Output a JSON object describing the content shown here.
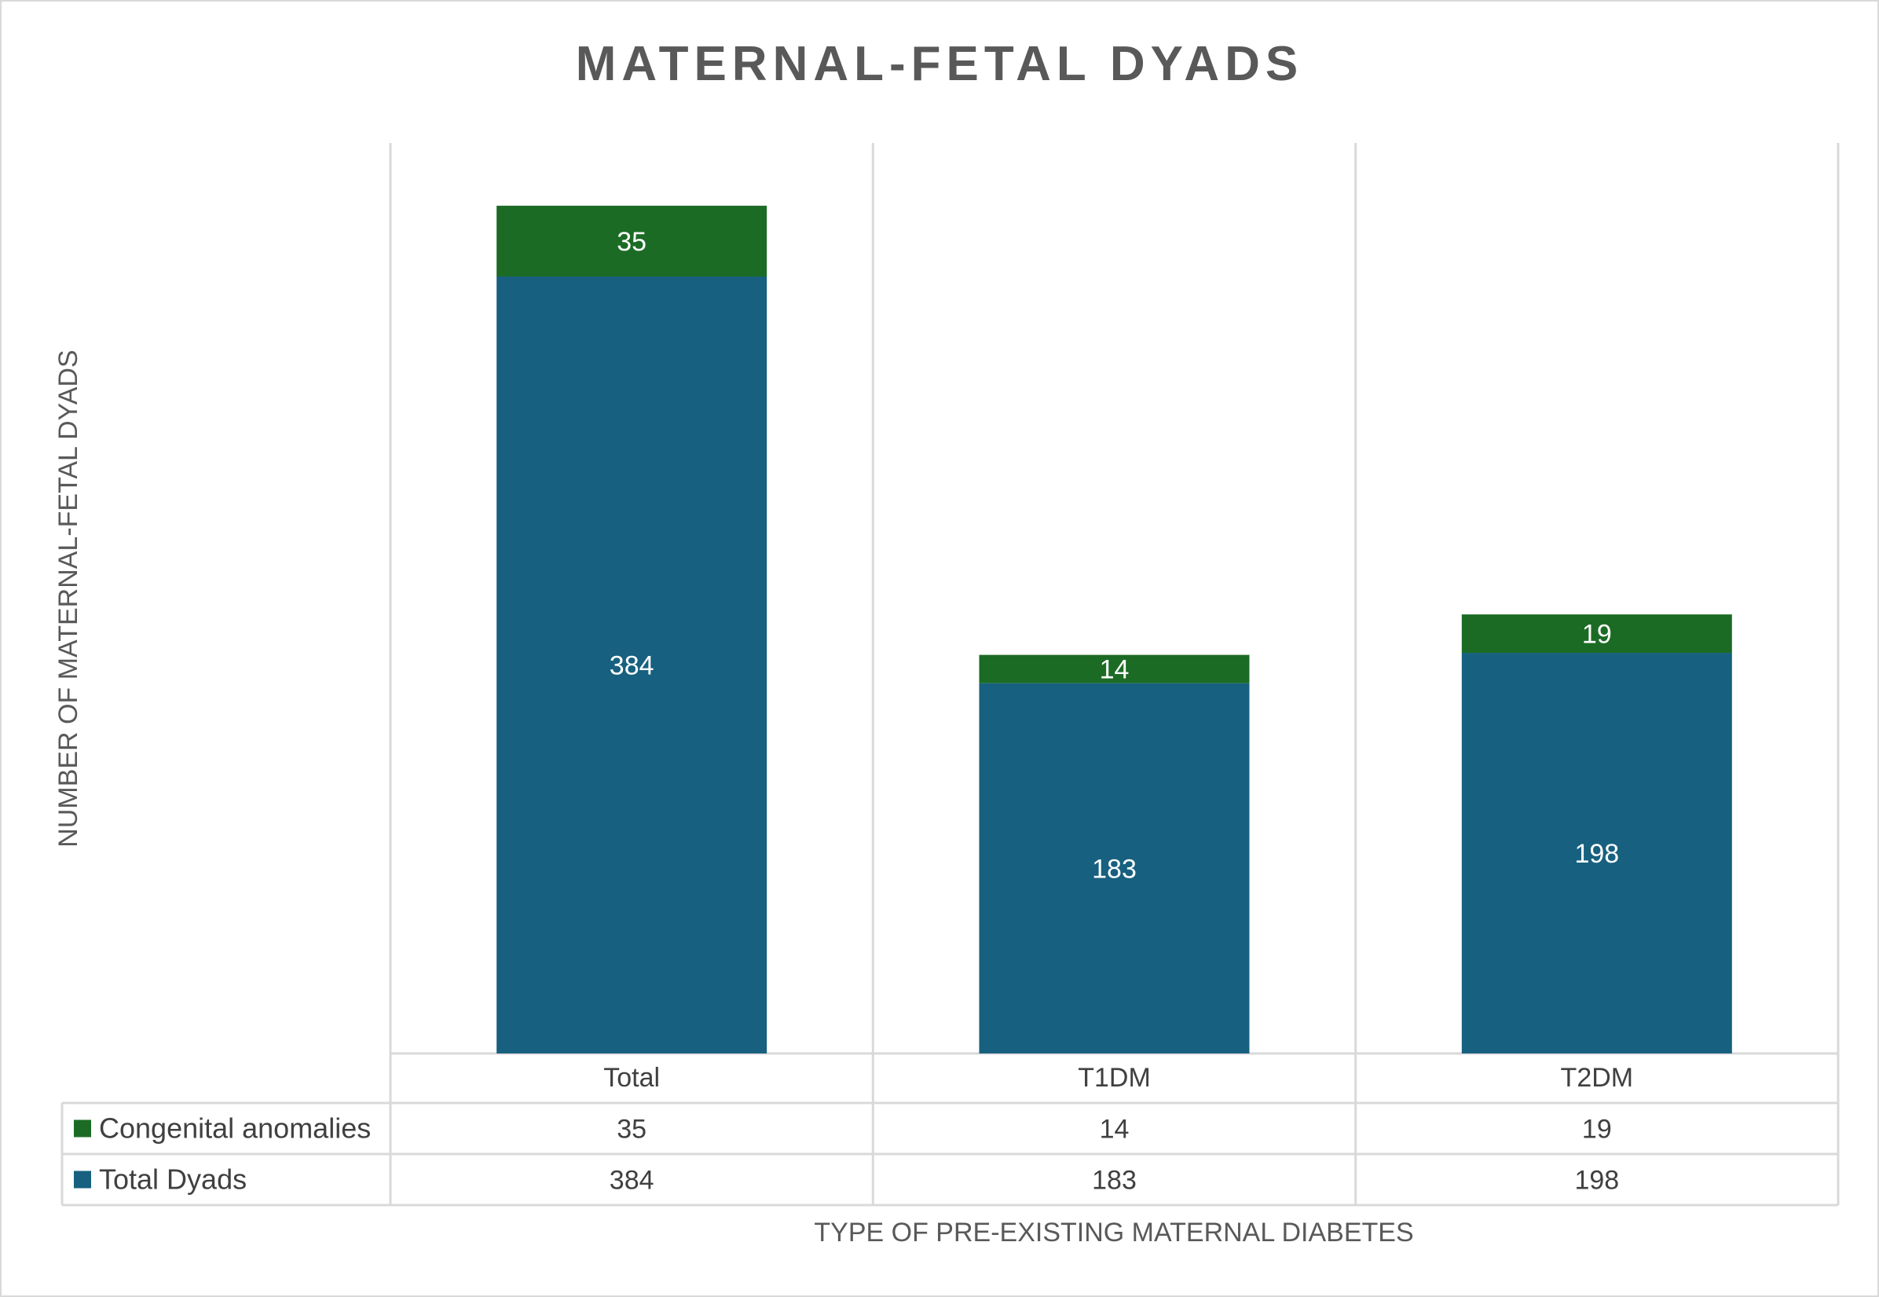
{
  "chart_data": {
    "type": "bar",
    "stacked": true,
    "title": "MATERNAL-FETAL DYADS",
    "xlabel": "TYPE OF PRE-EXISTING MATERNAL DIABETES",
    "ylabel": "NUMBER OF MATERNAL-FETAL DYADS",
    "categories": [
      "Total",
      "T1DM",
      "T2DM"
    ],
    "series": [
      {
        "name": "Total Dyads",
        "values": [
          384,
          183,
          198
        ],
        "color": "#17607f"
      },
      {
        "name": "Congenital anomalies",
        "values": [
          35,
          14,
          19
        ],
        "color": "#1c6b25"
      }
    ],
    "ylim": [
      0,
      450
    ],
    "data_table": true,
    "legend": "data table",
    "grid": "vertical category separators"
  }
}
